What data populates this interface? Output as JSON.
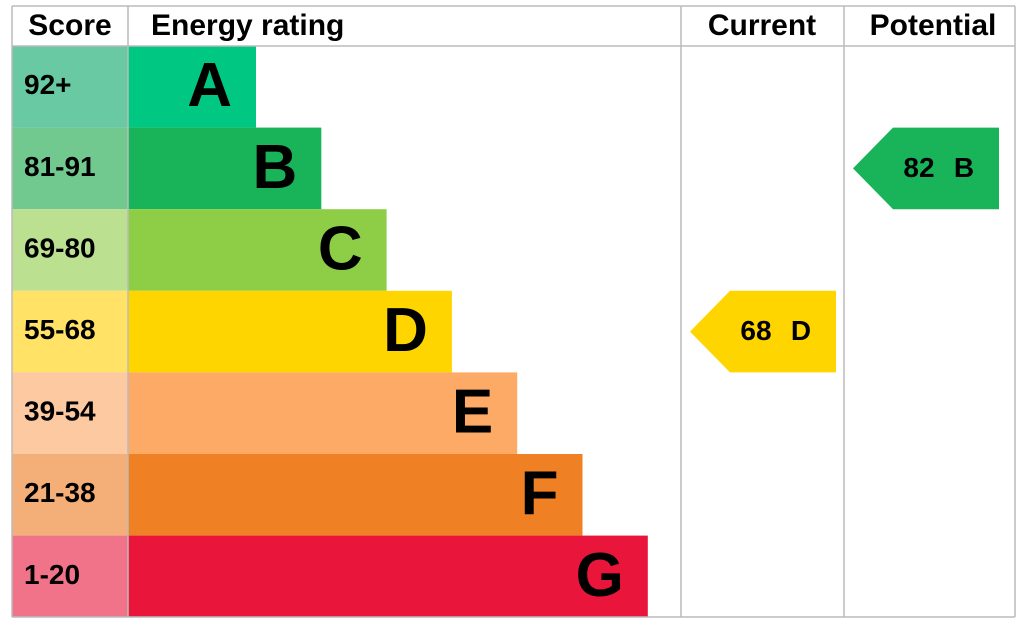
{
  "header": {
    "score": "Score",
    "rating": "Energy rating",
    "current": "Current",
    "potential": "Potential"
  },
  "bands": [
    {
      "score": "92+",
      "letter": "A",
      "color": "#00c781",
      "score_color": "#68c9a2"
    },
    {
      "score": "81-91",
      "letter": "B",
      "color": "#19b459",
      "score_color": "#72c990"
    },
    {
      "score": "69-80",
      "letter": "C",
      "color": "#8dce46",
      "score_color": "#bbe190"
    },
    {
      "score": "55-68",
      "letter": "D",
      "color": "#ffd500",
      "score_color": "#ffe266"
    },
    {
      "score": "39-54",
      "letter": "E",
      "color": "#fcaa65",
      "score_color": "#fdc9a1"
    },
    {
      "score": "21-38",
      "letter": "F",
      "color": "#ef8023",
      "score_color": "#f4ae78"
    },
    {
      "score": "1-20",
      "letter": "G",
      "color": "#e9153b",
      "score_color": "#f07389"
    }
  ],
  "current": {
    "value": "68",
    "letter": "D"
  },
  "potential": {
    "value": "82",
    "letter": "B"
  }
}
